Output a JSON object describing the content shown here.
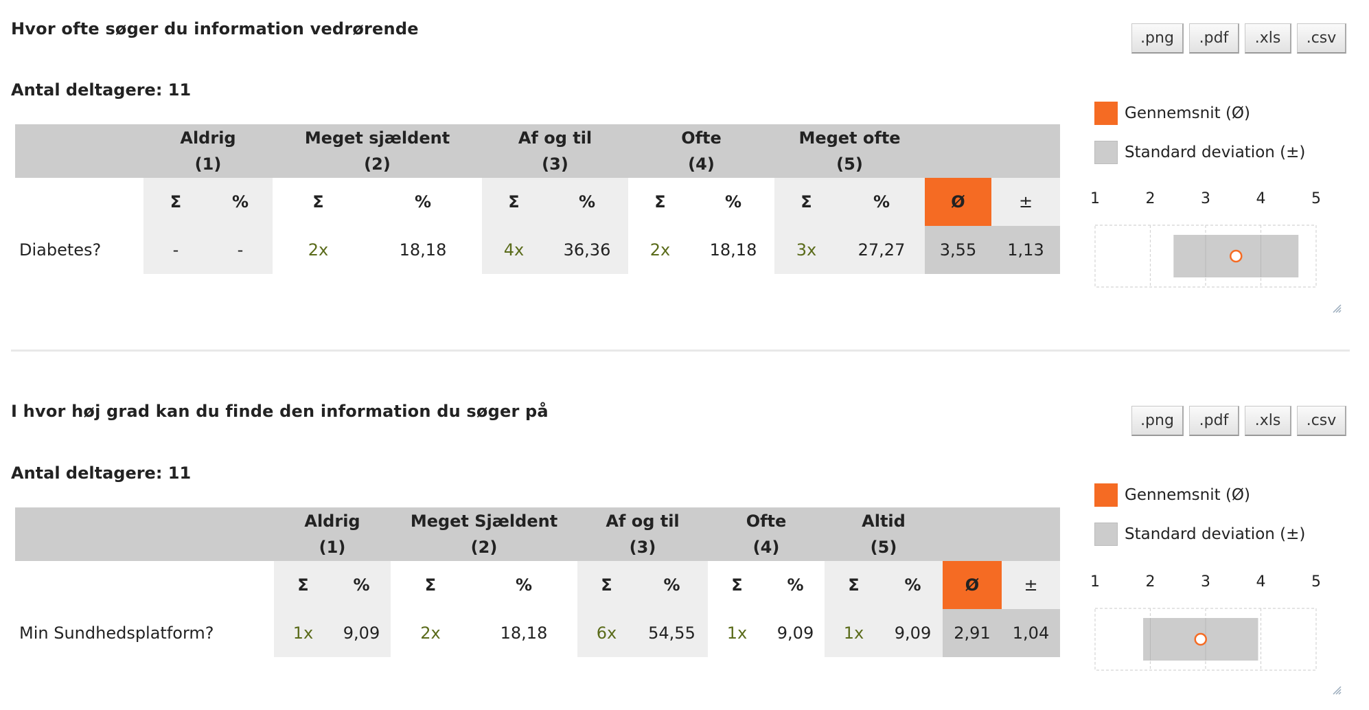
{
  "legend": {
    "avg_label": "Gennemsnit (Ø)",
    "sd_label": "Standard deviation (±)",
    "avg_color": "#f56b23",
    "sd_color": "#cccccc"
  },
  "exports": [
    ".png",
    ".pdf",
    ".xls",
    ".csv"
  ],
  "sub_headers": {
    "sum": "Σ",
    "pct": "%",
    "avg": "Ø",
    "sd": "±"
  },
  "scale_ticks": [
    "1",
    "2",
    "3",
    "4",
    "5"
  ],
  "questions": [
    {
      "title": "Hvor ofte søger du information vedrørende",
      "participants": "Antal deltagere: 11",
      "options": [
        {
          "label": "Aldrig",
          "num": "(1)"
        },
        {
          "label": "Meget sjældent",
          "num": "(2)"
        },
        {
          "label": "Af og til",
          "num": "(3)"
        },
        {
          "label": "Ofte",
          "num": "(4)"
        },
        {
          "label": "Meget ofte",
          "num": "(5)"
        }
      ],
      "row": {
        "label": "Diabetes?",
        "cells": [
          {
            "count": "-",
            "pct": "-"
          },
          {
            "count": "2x",
            "pct": "18,18"
          },
          {
            "count": "4x",
            "pct": "36,36"
          },
          {
            "count": "2x",
            "pct": "18,18"
          },
          {
            "count": "3x",
            "pct": "27,27"
          }
        ],
        "avg": "3,55",
        "sd": "1,13",
        "avg_value": 3.55,
        "sd_value": 1.13
      }
    },
    {
      "title": "I hvor høj grad kan du finde den information du søger på",
      "participants": "Antal deltagere: 11",
      "options": [
        {
          "label": "Aldrig",
          "num": "(1)"
        },
        {
          "label": "Meget Sjældent",
          "num": "(2)"
        },
        {
          "label": "Af og til",
          "num": "(3)"
        },
        {
          "label": "Ofte",
          "num": "(4)"
        },
        {
          "label": "Altid",
          "num": "(5)"
        }
      ],
      "row": {
        "label": "Min Sundhedsplatform?",
        "cells": [
          {
            "count": "1x",
            "pct": "9,09"
          },
          {
            "count": "2x",
            "pct": "18,18"
          },
          {
            "count": "6x",
            "pct": "54,55"
          },
          {
            "count": "1x",
            "pct": "9,09"
          },
          {
            "count": "1x",
            "pct": "9,09"
          }
        ],
        "avg": "2,91",
        "sd": "1,04",
        "avg_value": 2.91,
        "sd_value": 1.04
      }
    }
  ]
}
